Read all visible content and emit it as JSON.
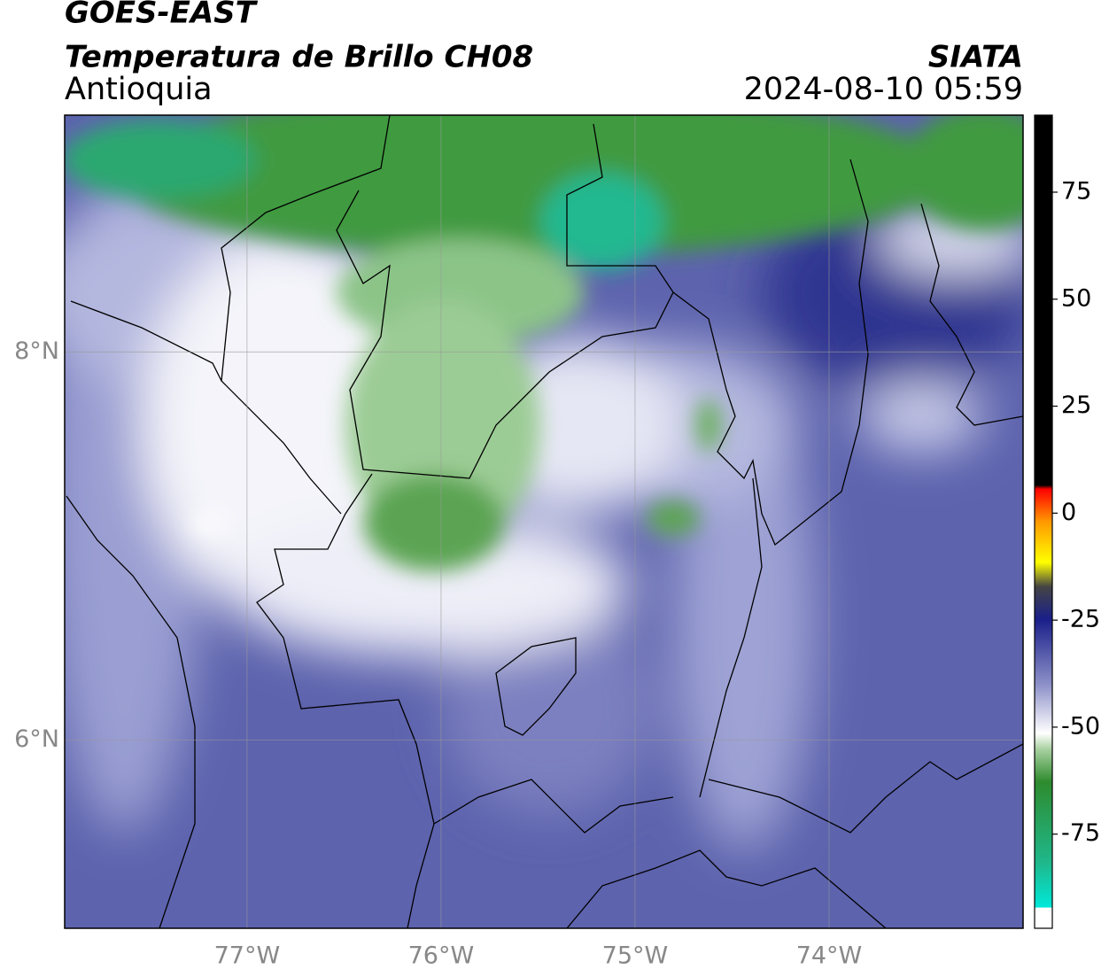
{
  "header": {
    "title": "GOES-EAST",
    "subtitle": "Temperatura de Brillo CH08",
    "region": "Antioquia",
    "source": "SIATA",
    "datetime": "2024-08-10 05:59"
  },
  "map": {
    "lonlim": [
      -77.94,
      -73.0
    ],
    "latlim": [
      5.03,
      9.22
    ],
    "lon_ticks": [
      {
        "value": -77,
        "label": "77°W"
      },
      {
        "value": -76,
        "label": "76°W"
      },
      {
        "value": -75,
        "label": "75°W"
      },
      {
        "value": -74,
        "label": "74°W"
      }
    ],
    "lat_ticks": [
      {
        "value": 8,
        "label": "8°N"
      },
      {
        "value": 6,
        "label": "6°N"
      }
    ]
  },
  "colorbar": {
    "range": [
      -97,
      93
    ],
    "ticks": [
      75,
      50,
      25,
      0,
      -25,
      -50,
      -75
    ]
  }
}
